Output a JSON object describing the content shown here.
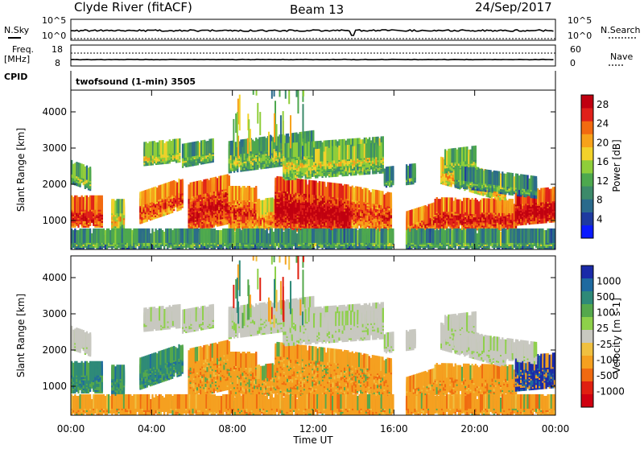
{
  "header": {
    "station": "Clyde River (fitACF)",
    "beam": "Beam 13",
    "date": "24/Sep/2017"
  },
  "top_panels": {
    "nsky_label": "N.Sky",
    "nsky_tick_hi": "10^5",
    "nsky_tick_lo": "10^0",
    "nsearch_label": "N.Search",
    "nsearch_tick_hi": "10^5",
    "nsearch_tick_lo": "10^0",
    "freq_label_1": "Freq.",
    "freq_label_2": "[MHz]",
    "freq_tick_hi": "18",
    "freq_tick_lo": "8",
    "nave_label": "Nave",
    "nave_tick_hi": "60",
    "nave_tick_lo": "0",
    "cpid_label": "CPID",
    "cpid_text": "twofsound (1-min) 3505"
  },
  "colors": {
    "power_scale": [
      "#0a1aff",
      "#1e3aa0",
      "#2a6a8c",
      "#3c8a6a",
      "#4da84e",
      "#8fce3a",
      "#f2d22a",
      "#f7a21a",
      "#f26a10",
      "#e0201a",
      "#c00010"
    ],
    "velocity_scale": [
      "#1a2aa8",
      "#1e6aa0",
      "#2e8a78",
      "#55a84c",
      "#8ed04a",
      "#c8c8c0",
      "#f0c040",
      "#f5a020",
      "#f06a10",
      "#e02010",
      "#d00010"
    ],
    "ground_gray": "#c8c8c0",
    "velocity_orange": "#f08010"
  },
  "chart_data": [
    {
      "type": "heatmap",
      "name": "power",
      "ylabel": "Slant Range [km]",
      "xlabel": "",
      "x_ticks": [
        "00:00",
        "04:00",
        "08:00",
        "12:00",
        "16:00",
        "20:00",
        "00:00"
      ],
      "y_ticks": [
        1000,
        2000,
        3000,
        4000
      ],
      "ylim": [
        200,
        4600
      ],
      "colorbar_label": "Power [dB]",
      "colorbar_ticks": [
        4,
        8,
        12,
        16,
        20,
        24,
        28
      ],
      "colorbar_range": [
        0,
        30
      ]
    },
    {
      "type": "heatmap",
      "name": "velocity",
      "ylabel": "Slant Range [km]",
      "xlabel": "Time UT",
      "x_ticks": [
        "00:00",
        "04:00",
        "08:00",
        "12:00",
        "16:00",
        "20:00",
        "00:00"
      ],
      "y_ticks": [
        1000,
        2000,
        3000,
        4000
      ],
      "ylim": [
        200,
        4600
      ],
      "colorbar_label": "Velocity [m s-1]",
      "colorbar_ticks": [
        "1000",
        "500",
        "100",
        "25",
        "-25",
        "-100",
        "-500",
        "-1000"
      ]
    }
  ]
}
